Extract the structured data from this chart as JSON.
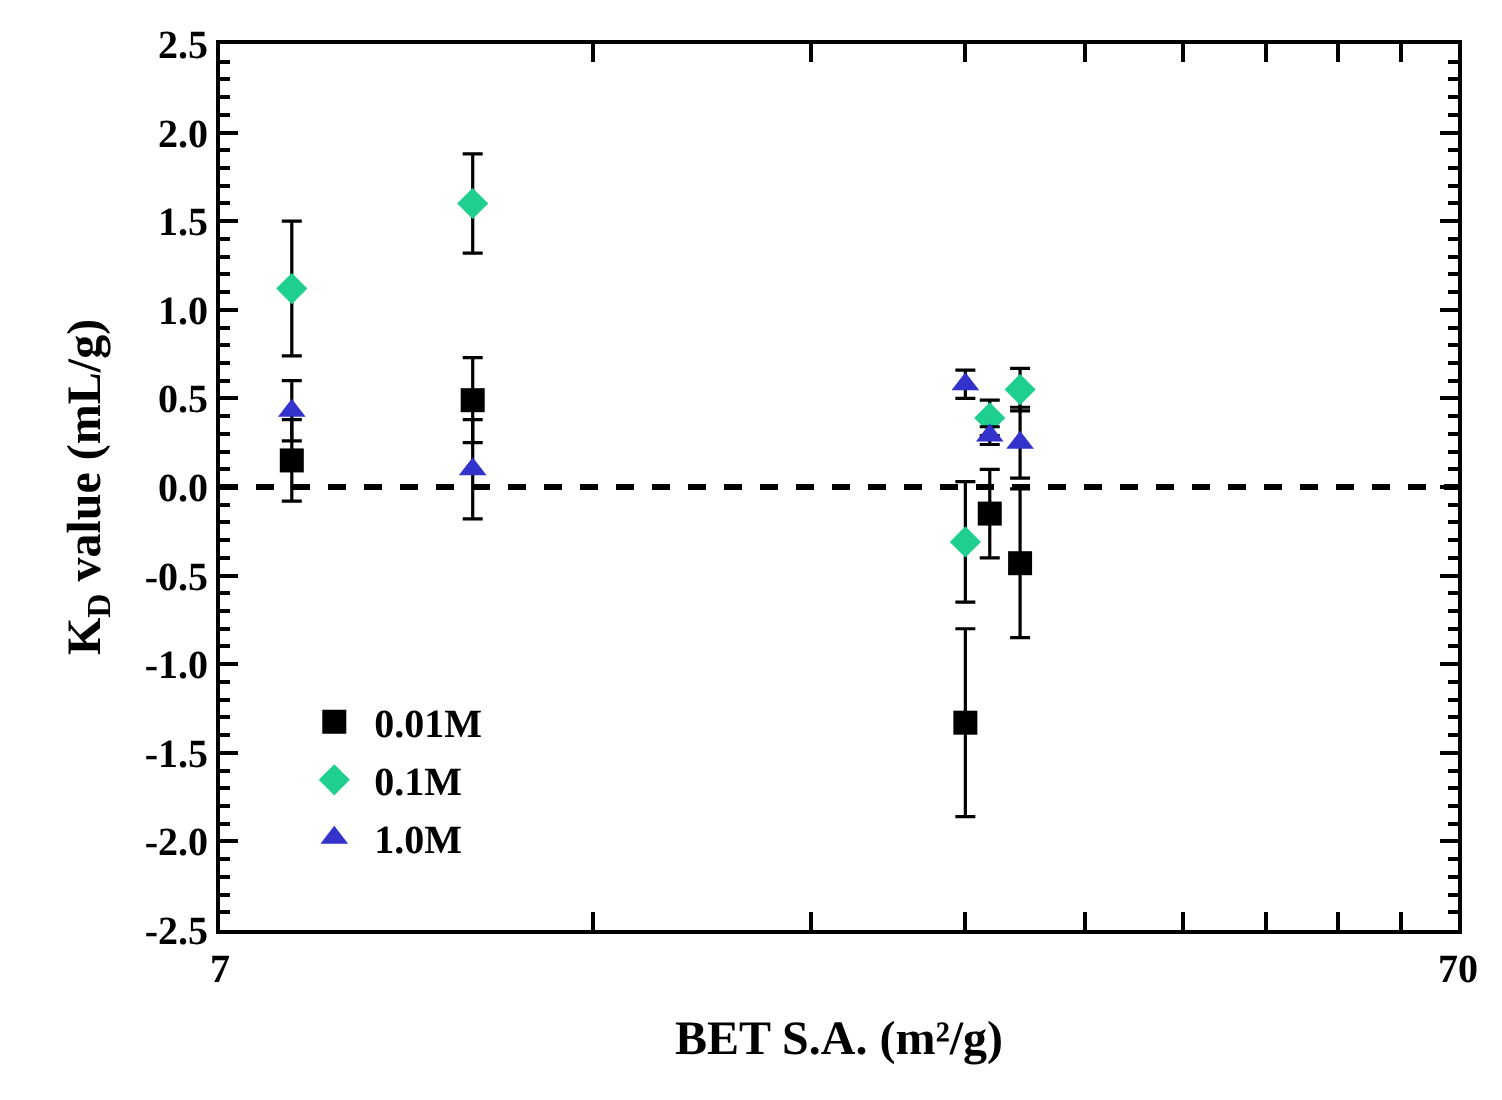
{
  "chart_data": {
    "type": "scatter",
    "xlabel": "BET S.A. (m²/g)",
    "ylabel": "K$_{D}$ value (mL/g)",
    "log": "x",
    "xlim": [
      7,
      70
    ],
    "xticks": [
      7,
      {
        "value": 14,
        "label": null
      },
      {
        "value": 21,
        "label": null
      },
      {
        "value": 28,
        "label": null
      },
      {
        "value": 35,
        "label": null
      },
      {
        "value": 42,
        "label": null
      },
      {
        "value": 49,
        "label": null
      },
      {
        "value": 56,
        "label": null
      },
      {
        "value": 63,
        "label": null
      },
      70
    ],
    "ylim": [
      -2.5,
      2.5
    ],
    "yticks": [
      -2.5,
      {
        "value": -2,
        "label": "-2.0"
      },
      -1.5,
      {
        "value": -1,
        "label": "-1.0"
      },
      -0.5,
      {
        "value": 0,
        "label": "0.0"
      },
      0.5,
      {
        "value": 1,
        "label": "1.0"
      },
      1.5,
      {
        "value": 2,
        "label": "2.0"
      },
      2.5
    ],
    "grid": false,
    "legend": "bottom left",
    "ref_lines": [
      {
        "axis": "y",
        "value": 0,
        "color": "#000000",
        "line_style": "dashed"
      }
    ],
    "series": [
      {
        "name": "0.01M",
        "color": "#000000",
        "marker": "square",
        "x": [
          8.0,
          11.2,
          28,
          29.3,
          31
        ],
        "values": [
          0.15,
          0.49,
          -1.33,
          -0.15,
          -0.43
        ],
        "errors": [
          0.23,
          0.24,
          0.53,
          0.25,
          0.42
        ]
      },
      {
        "name": "0.1M",
        "color": "#1fcf8f",
        "marker": "diamond",
        "x": [
          8.0,
          11.2,
          28,
          29.3,
          31
        ],
        "values": [
          1.12,
          1.6,
          -0.31,
          0.39,
          0.55
        ],
        "errors": [
          0.38,
          0.28,
          0.34,
          0.1,
          0.12
        ]
      },
      {
        "name": "1.0M",
        "color": "#3333cc",
        "marker": "triangle",
        "x": [
          8.0,
          11.2,
          28,
          29.3,
          31
        ],
        "values": [
          0.43,
          0.1,
          0.58,
          0.29,
          0.25
        ],
        "errors": [
          0.17,
          0.28,
          0.08,
          0.05,
          0.2
        ]
      }
    ]
  }
}
